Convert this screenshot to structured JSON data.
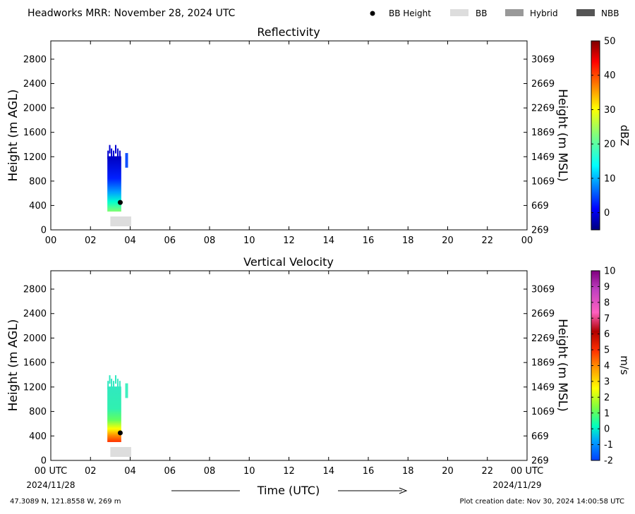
{
  "header": {
    "title": "Headworks MRR:  November 28, 2024 UTC",
    "legend": [
      {
        "label": "BB Height",
        "marker": "dot",
        "color": "#000000"
      },
      {
        "label": "BB",
        "marker": "swatch",
        "color": "#dddddd"
      },
      {
        "label": "Hybrid",
        "marker": "swatch",
        "color": "#999999"
      },
      {
        "label": "NBB",
        "marker": "swatch",
        "color": "#555555"
      }
    ]
  },
  "chart_data": [
    {
      "type": "heatmap",
      "title": "Reflectivity",
      "ylabel": "Height (m AGL)",
      "ylabel_right": "Height (m MSL)",
      "xlim": [
        0,
        24
      ],
      "ylim": [
        0,
        3100
      ],
      "x_ticks": [
        "00",
        "02",
        "04",
        "06",
        "08",
        "10",
        "12",
        "14",
        "16",
        "18",
        "20",
        "22",
        "00"
      ],
      "y_ticks": [
        0,
        400,
        800,
        1200,
        1600,
        2000,
        2400,
        2800
      ],
      "y_ticks_right": [
        269,
        669,
        1069,
        1469,
        1869,
        2269,
        2669,
        3069
      ],
      "colorbar": {
        "label": "dBZ",
        "min": -5,
        "max": 50,
        "ticks": [
          0,
          10,
          20,
          30,
          40,
          50
        ],
        "colormap": "jet"
      },
      "data_region": {
        "t_start": 2.85,
        "t_end": 3.55,
        "h_min": 300,
        "h_max": 1300
      },
      "bb_height": {
        "t": 3.5,
        "h": 450
      },
      "bb_band": {
        "t_start": 3.0,
        "t_end": 4.05
      }
    },
    {
      "type": "heatmap",
      "title": "Vertical Velocity",
      "ylabel": "Height (m AGL)",
      "ylabel_right": "Height (m MSL)",
      "xlim": [
        0,
        24
      ],
      "ylim": [
        0,
        3100
      ],
      "x_ticks": [
        "00 UTC",
        "02",
        "04",
        "06",
        "08",
        "10",
        "12",
        "14",
        "16",
        "18",
        "20",
        "22",
        "00 UTC"
      ],
      "y_ticks": [
        0,
        400,
        800,
        1200,
        1600,
        2000,
        2400,
        2800
      ],
      "y_ticks_right": [
        269,
        669,
        1069,
        1469,
        1869,
        2269,
        2669,
        3069
      ],
      "colorbar": {
        "label": "m/s",
        "min": -2,
        "max": 10,
        "ticks": [
          -2,
          -1,
          0,
          1,
          2,
          3,
          4,
          5,
          6,
          7,
          8,
          9,
          10
        ]
      },
      "data_region": {
        "t_start": 2.85,
        "t_end": 3.55,
        "h_min": 300,
        "h_max": 1300
      },
      "bb_height": {
        "t": 3.5,
        "h": 450
      },
      "bb_band": {
        "t_start": 3.0,
        "t_end": 4.05
      }
    }
  ],
  "xaxis": {
    "label": "Time (UTC)",
    "date_left": "2024/11/28",
    "date_right": "2024/11/29"
  },
  "footer": {
    "location": "47.3089 N, 121.8558 W, 269 m",
    "created": "Plot creation date: Nov 30, 2024 14:00:58 UTC"
  }
}
